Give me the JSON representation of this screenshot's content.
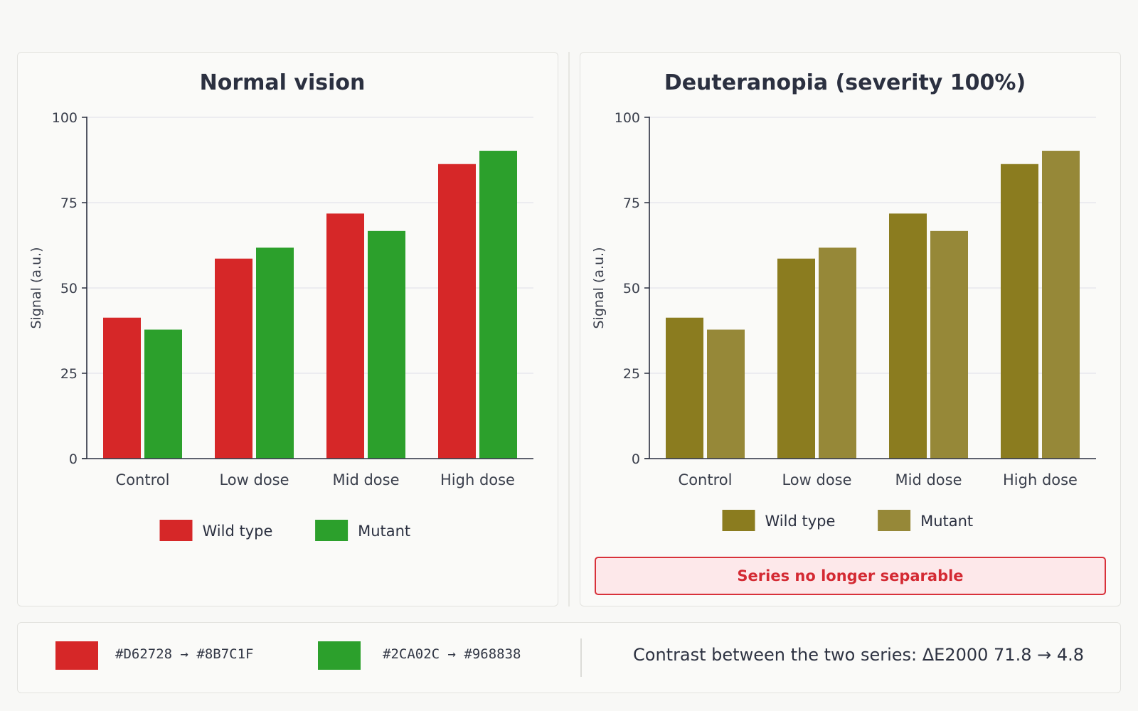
{
  "chart_data": [
    {
      "type": "bar",
      "title": "Normal vision",
      "ylabel": "Signal (a.u.)",
      "xlabel": "",
      "ylim": [
        0,
        100
      ],
      "yticks": [
        0,
        25,
        50,
        75,
        100
      ],
      "grid": true,
      "legend_position": "bottom",
      "categories": [
        "Control",
        "Low dose",
        "Mid dose",
        "High dose"
      ],
      "series": [
        {
          "name": "Wild type",
          "color": "#D62728",
          "values": [
            41.3,
            58.6,
            71.8,
            86.3
          ]
        },
        {
          "name": "Mutant",
          "color": "#2CA02C",
          "values": [
            37.8,
            61.8,
            66.7,
            90.2
          ]
        }
      ]
    },
    {
      "type": "bar",
      "title": "Deuteranopia (severity 100%)",
      "ylabel": "Signal (a.u.)",
      "xlabel": "",
      "ylim": [
        0,
        100
      ],
      "yticks": [
        0,
        25,
        50,
        75,
        100
      ],
      "grid": true,
      "legend_position": "bottom",
      "categories": [
        "Control",
        "Low dose",
        "Mid dose",
        "High dose"
      ],
      "series": [
        {
          "name": "Wild type",
          "color": "#8B7C1F",
          "values": [
            41.3,
            58.6,
            71.8,
            86.3
          ]
        },
        {
          "name": "Mutant",
          "color": "#968838",
          "values": [
            37.8,
            61.8,
            66.7,
            90.2
          ]
        }
      ],
      "warning": "Series no longer separable"
    }
  ],
  "mappings": [
    {
      "from_color": "#D62728",
      "label": "#D62728 → #8B7C1F"
    },
    {
      "from_color": "#2CA02C",
      "label": "#2CA02C → #968838"
    }
  ],
  "contrast_text": "Contrast between the two series: ΔE2000 71.8 → 4.8"
}
